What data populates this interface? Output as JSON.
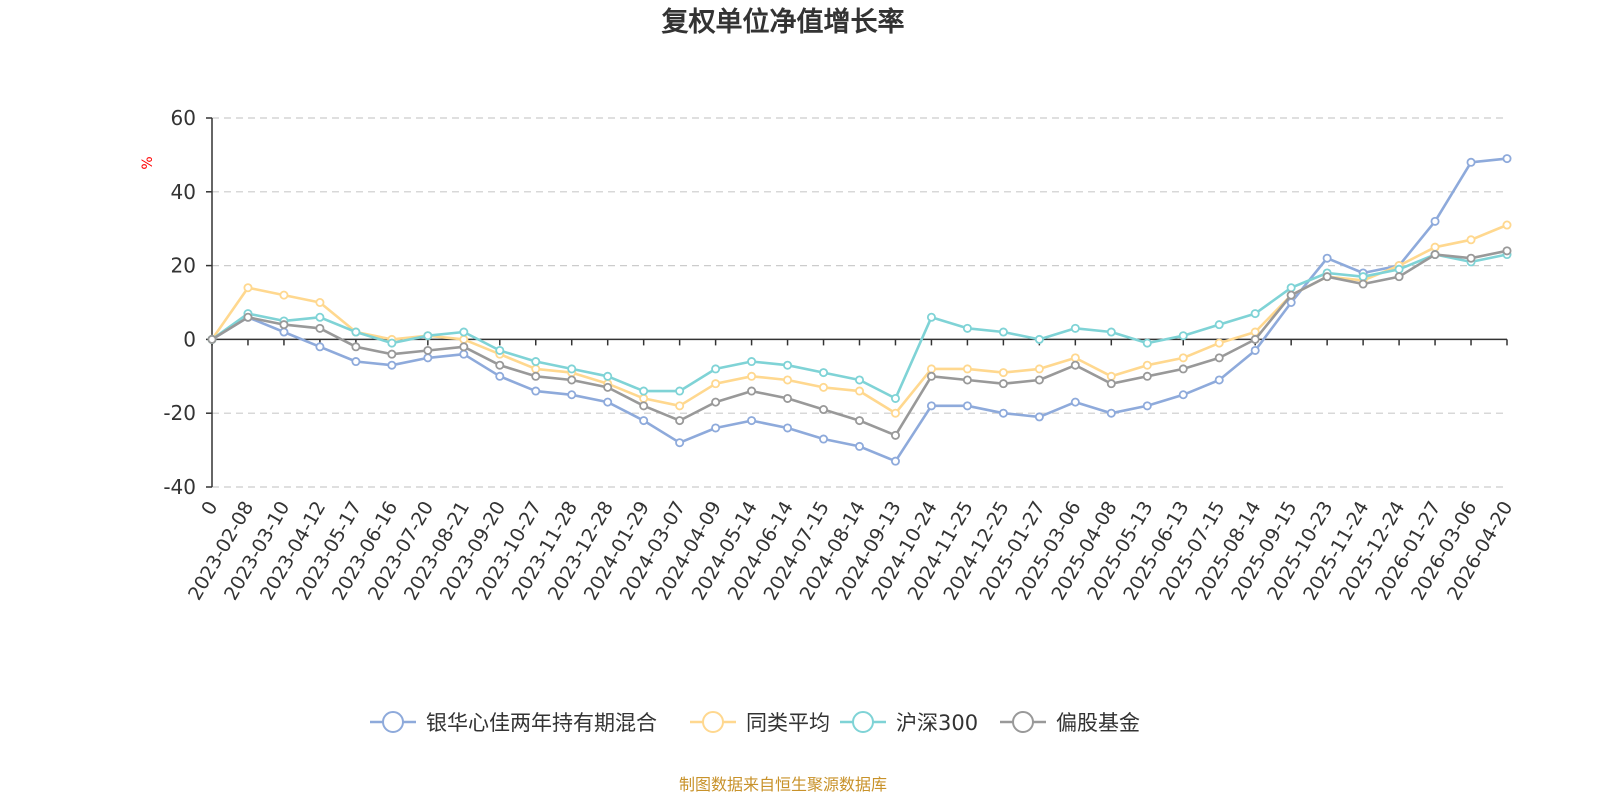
{
  "chart_data": {
    "type": "line",
    "title": "复权单位净值增长率",
    "ylabel": "%",
    "xlabel": "",
    "ylim": [
      -40,
      60
    ],
    "yticks": [
      "60",
      "40",
      "20",
      "0",
      "-20",
      "-40"
    ],
    "grid": true,
    "legend_position": "bottom",
    "categories": [
      "0",
      "2023-02-08",
      "2023-03-10",
      "2023-04-12",
      "2023-05-17",
      "2023-06-16",
      "2023-07-20",
      "2023-08-21",
      "2023-09-20",
      "2023-10-27",
      "2023-11-28",
      "2023-12-28",
      "2024-01-29",
      "2024-03-07",
      "2024-04-09",
      "2024-05-14",
      "2024-06-14",
      "2024-07-15",
      "2024-08-14",
      "2024-09-13",
      "2024-10-24",
      "2024-11-25",
      "2024-12-25",
      "2025-01-27",
      "2025-03-06",
      "2025-04-08",
      "2025-05-13",
      "2025-06-13",
      "2025-07-15",
      "2025-08-14",
      "2025-09-15",
      "2025-10-23",
      "2025-11-24",
      "2025-12-24",
      "2026-01-27",
      "2026-03-06",
      "2026-04-20"
    ],
    "series": [
      {
        "name": "银华心佳两年持有期混合",
        "color": "#8eaadb",
        "values": [
          0,
          6,
          2,
          -2,
          -6,
          -7,
          -5,
          -4,
          -10,
          -14,
          -15,
          -17,
          -22,
          -28,
          -24,
          -22,
          -24,
          -27,
          -29,
          -33,
          -18,
          -18,
          -20,
          -21,
          -17,
          -20,
          -18,
          -15,
          -11,
          -3,
          10,
          22,
          18,
          20,
          32,
          48,
          49
        ]
      },
      {
        "name": "同类平均",
        "color": "#ffd88f",
        "values": [
          0,
          14,
          12,
          10,
          2,
          0,
          1,
          0,
          -4,
          -8,
          -9,
          -12,
          -16,
          -18,
          -12,
          -10,
          -11,
          -13,
          -14,
          -20,
          -8,
          -8,
          -9,
          -8,
          -5,
          -10,
          -7,
          -5,
          -1,
          2,
          12,
          17,
          16,
          20,
          25,
          27,
          31
        ]
      },
      {
        "name": "沪深300",
        "color": "#7fd3d6",
        "values": [
          0,
          7,
          5,
          6,
          2,
          -1,
          1,
          2,
          -3,
          -6,
          -8,
          -10,
          -14,
          -14,
          -8,
          -6,
          -7,
          -9,
          -11,
          -16,
          6,
          3,
          2,
          0,
          3,
          2,
          -1,
          1,
          4,
          7,
          14,
          18,
          17,
          19,
          23,
          21,
          23
        ]
      },
      {
        "name": "偏股基金",
        "color": "#999999",
        "values": [
          0,
          6,
          4,
          3,
          -2,
          -4,
          -3,
          -2,
          -7,
          -10,
          -11,
          -13,
          -18,
          -22,
          -17,
          -14,
          -16,
          -19,
          -22,
          -26,
          -10,
          -11,
          -12,
          -11,
          -7,
          -12,
          -10,
          -8,
          -5,
          0,
          12,
          17,
          15,
          17,
          23,
          22,
          24
        ]
      }
    ],
    "source_note": "制图数据来自恒生聚源数据库"
  }
}
